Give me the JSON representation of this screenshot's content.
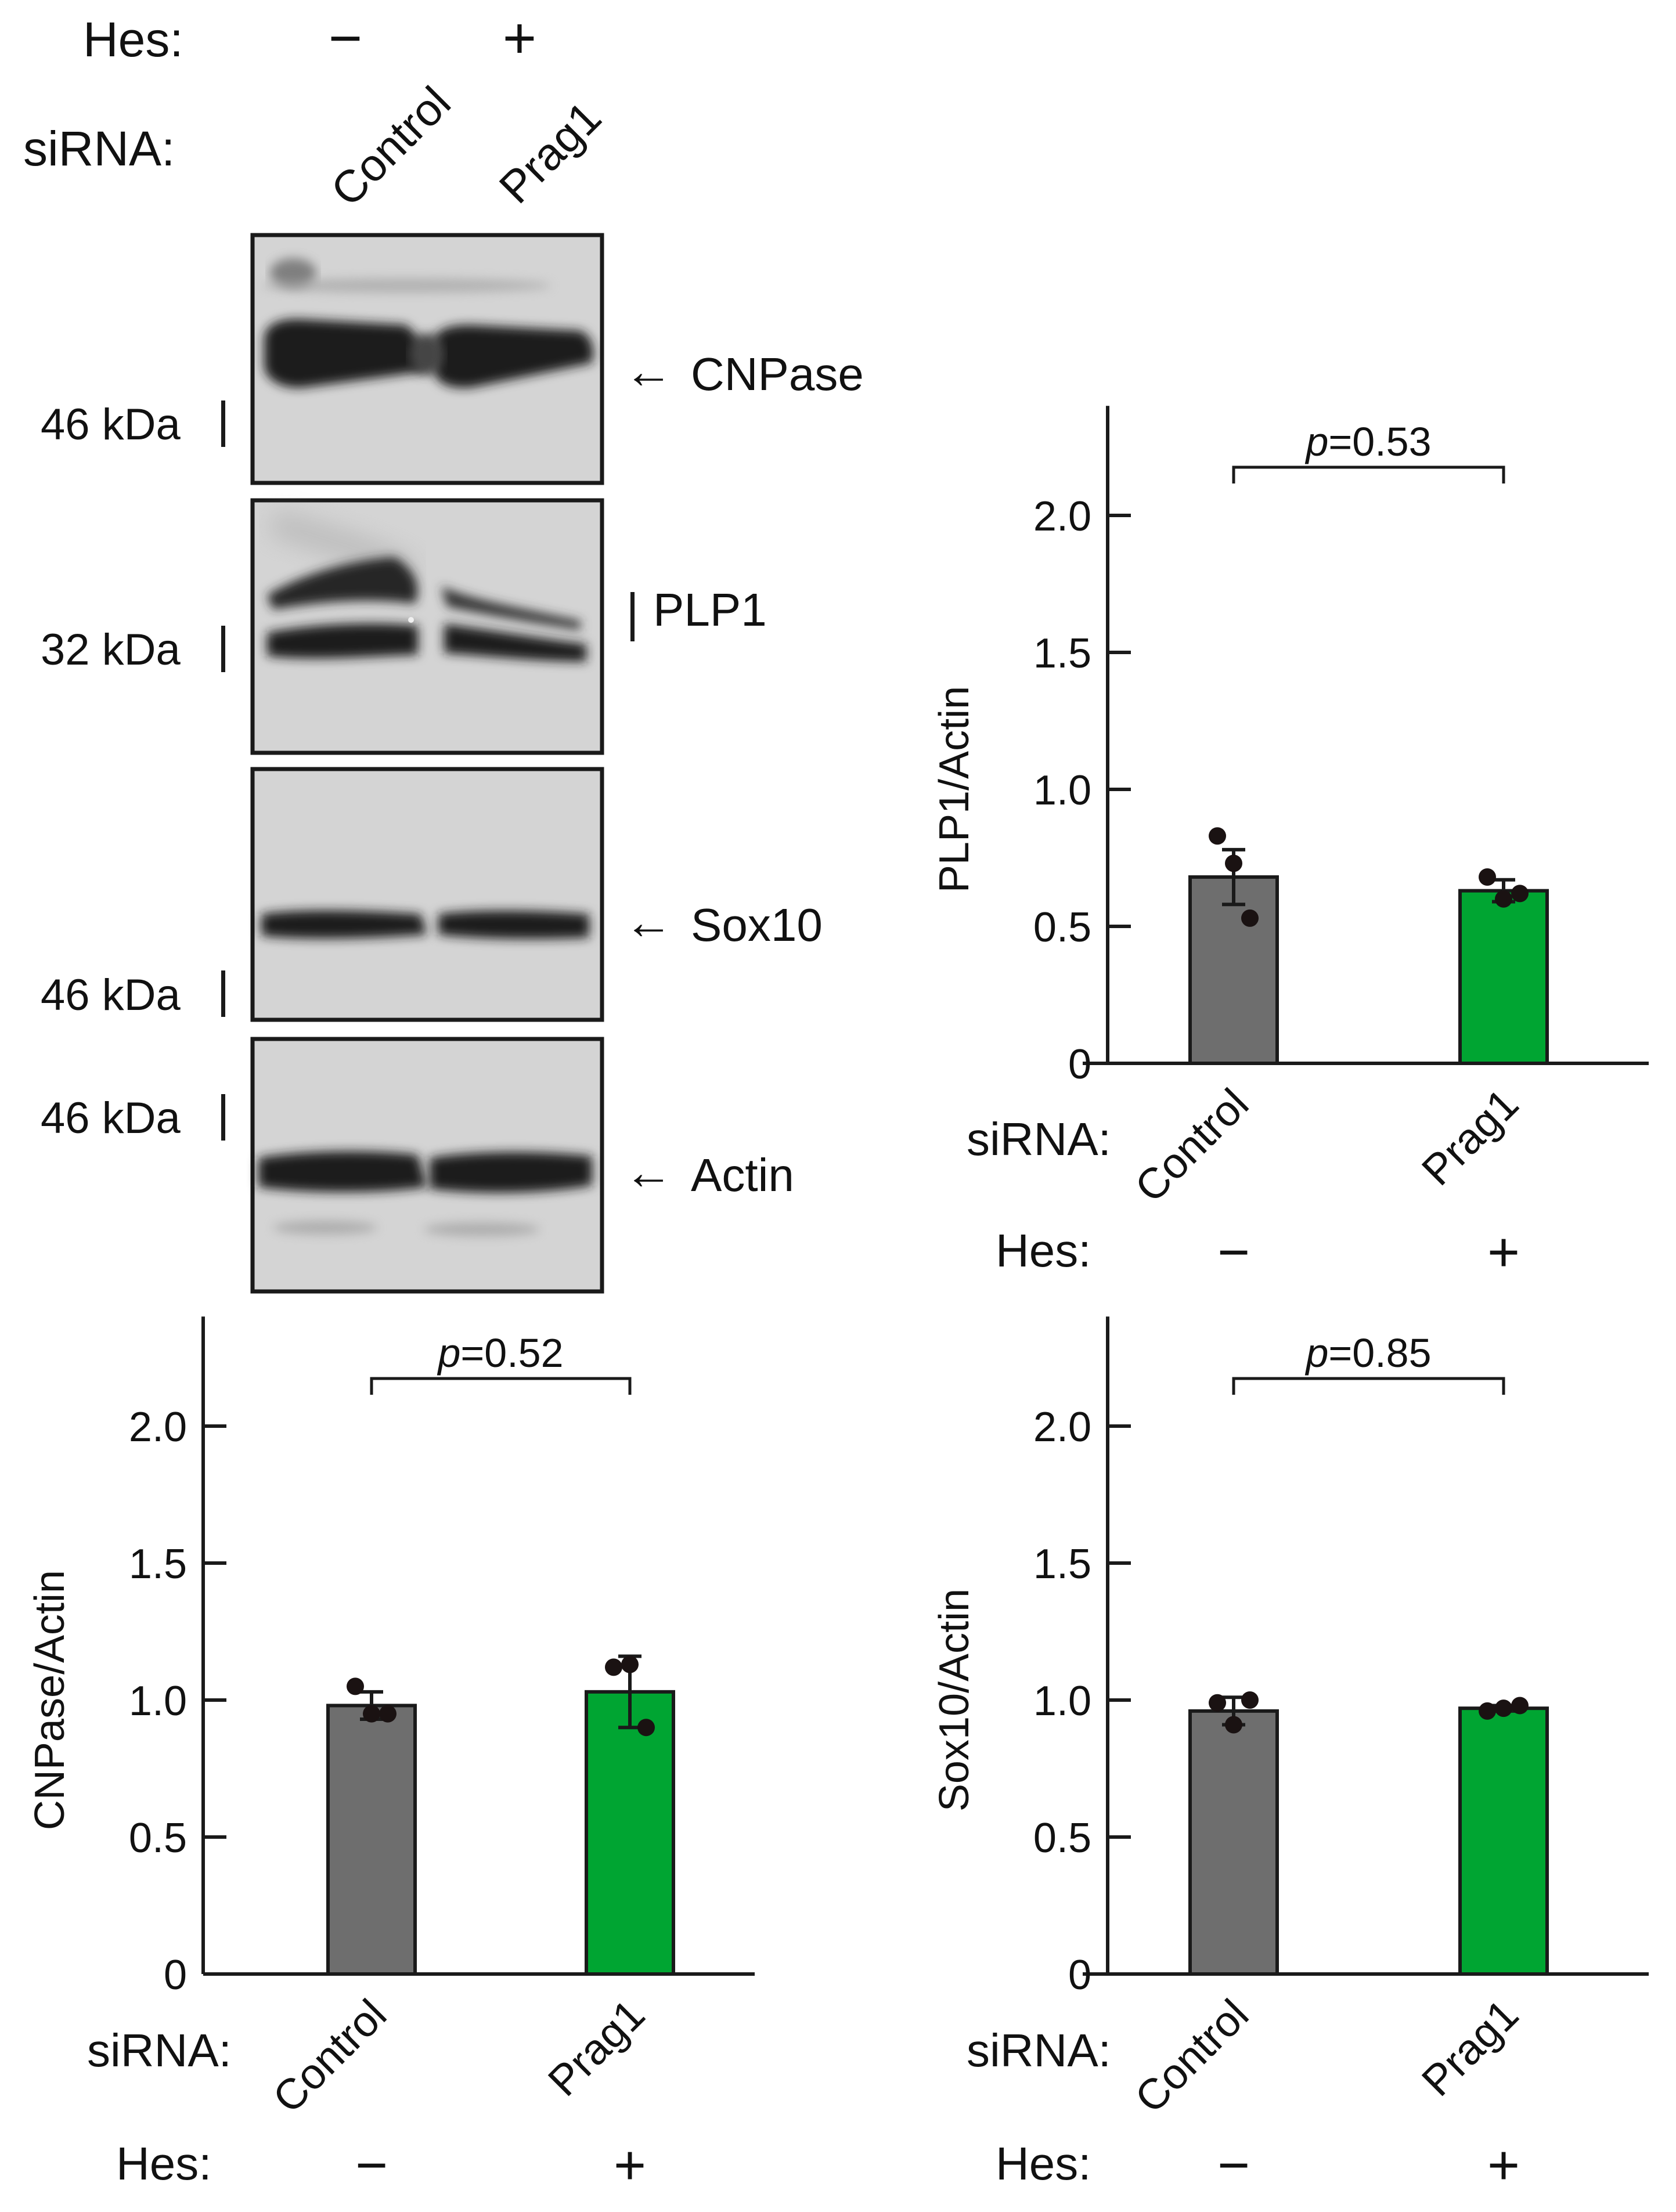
{
  "western_blot": {
    "hes_label": "Hes:",
    "sirna_label": "siRNA:",
    "lanes": [
      {
        "hes": "−",
        "sirna": "Control"
      },
      {
        "hes": "+",
        "sirna": "Prag1"
      }
    ],
    "panels": [
      {
        "target": "CNPase",
        "marker": "46 kDa",
        "target_marker": "arrow"
      },
      {
        "target": "PLP1",
        "marker": "32 kDa",
        "target_marker": "bar"
      },
      {
        "target": "Sox10",
        "marker": "46 kDa",
        "target_marker": "arrow"
      },
      {
        "target": "Actin",
        "marker": "46 kDa",
        "target_marker": "arrow"
      }
    ]
  },
  "colors": {
    "control_bar": "#6e6e6e",
    "prag1_bar": "#00a532",
    "axis": "#1a1a1a",
    "dot": "#1a1212",
    "band": "#1b1b1b",
    "membrane": "#d4d4d4"
  },
  "chart_data": [
    {
      "type": "bar",
      "id": "plp1",
      "categories": [
        "Control",
        "Prag1"
      ],
      "hes": [
        "−",
        "+"
      ],
      "values": [
        0.68,
        0.63
      ],
      "errors": [
        0.1,
        0.04
      ],
      "points": [
        [
          0.83,
          0.73,
          0.53
        ],
        [
          0.68,
          0.6,
          0.62
        ]
      ],
      "ylabel": "PLP1/Actin",
      "xlabel": "siRNA:",
      "hes_label": "Hes:",
      "pvalue_p": "p",
      "pvalue_rest": "=0.53",
      "ylim": [
        0,
        2.4
      ],
      "yticks": [
        0,
        0.5,
        1.0,
        1.5,
        2.0
      ],
      "ytick_labels": [
        "0",
        "0.5",
        "1.0",
        "1.5",
        "2.0"
      ]
    },
    {
      "type": "bar",
      "id": "cnpase",
      "categories": [
        "Control",
        "Prag1"
      ],
      "hes": [
        "−",
        "+"
      ],
      "values": [
        0.98,
        1.03
      ],
      "errors": [
        0.05,
        0.13
      ],
      "points": [
        [
          1.05,
          0.95,
          0.95
        ],
        [
          1.12,
          1.13,
          0.9
        ]
      ],
      "ylabel": "CNPase/Actin",
      "xlabel": "siRNA:",
      "hes_label": "Hes:",
      "pvalue_p": "p",
      "pvalue_rest": "=0.52",
      "ylim": [
        0,
        2.4
      ],
      "yticks": [
        0,
        0.5,
        1.0,
        1.5,
        2.0
      ],
      "ytick_labels": [
        "0",
        "0.5",
        "1.0",
        "1.5",
        "2.0"
      ]
    },
    {
      "type": "bar",
      "id": "sox10",
      "categories": [
        "Control",
        "Prag1"
      ],
      "hes": [
        "−",
        "+"
      ],
      "values": [
        0.96,
        0.97
      ],
      "errors": [
        0.05,
        0.01
      ],
      "points": [
        [
          0.99,
          0.91,
          1.0
        ],
        [
          0.96,
          0.97,
          0.98
        ]
      ],
      "ylabel": "Sox10/Actin",
      "xlabel": "siRNA:",
      "hes_label": "Hes:",
      "pvalue_p": "p",
      "pvalue_rest": "=0.85",
      "ylim": [
        0,
        2.4
      ],
      "yticks": [
        0,
        0.5,
        1.0,
        1.5,
        2.0
      ],
      "ytick_labels": [
        "0",
        "0.5",
        "1.0",
        "1.5",
        "2.0"
      ]
    }
  ]
}
